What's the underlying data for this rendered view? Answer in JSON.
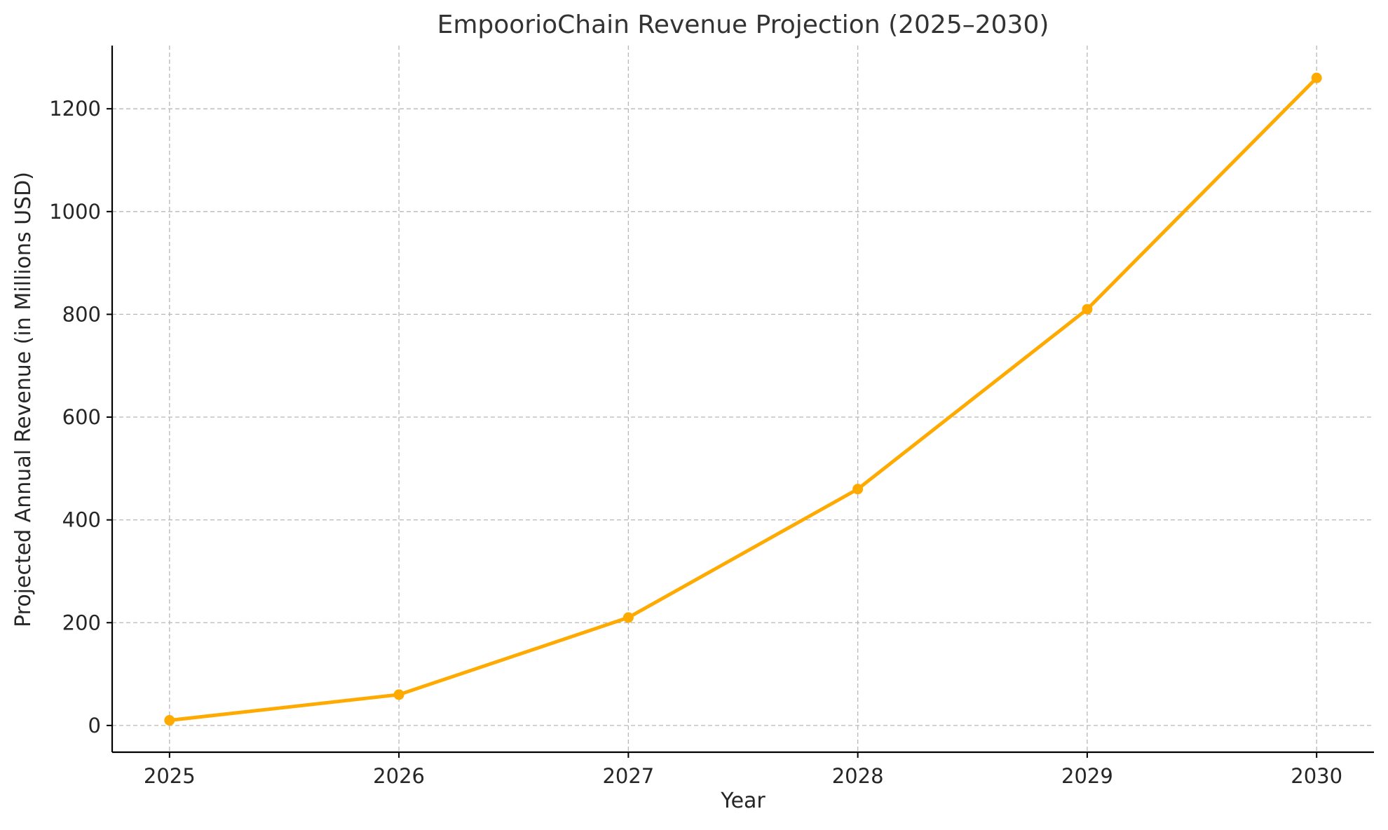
{
  "chart_data": {
    "type": "line",
    "title": "EmpoorioChain Revenue Projection (2025–2030)",
    "xlabel": "Year",
    "ylabel": "Projected Annual Revenue (in Millions USD)",
    "x": [
      2025,
      2026,
      2027,
      2028,
      2029,
      2030
    ],
    "x_tick_labels": [
      "2025",
      "2026",
      "2027",
      "2028",
      "2029",
      "2030"
    ],
    "y_ticks": [
      0,
      200,
      400,
      600,
      800,
      1000,
      1200
    ],
    "y_tick_labels": [
      "0",
      "200",
      "400",
      "600",
      "800",
      "1000",
      "1200"
    ],
    "xlim": [
      2024.75,
      2030.25
    ],
    "ylim": [
      -52,
      1323
    ],
    "grid": true,
    "series": [
      {
        "values": [
          10,
          60,
          210,
          460,
          810,
          1260
        ],
        "color": "#FFAA00",
        "marker": "circle"
      }
    ]
  }
}
